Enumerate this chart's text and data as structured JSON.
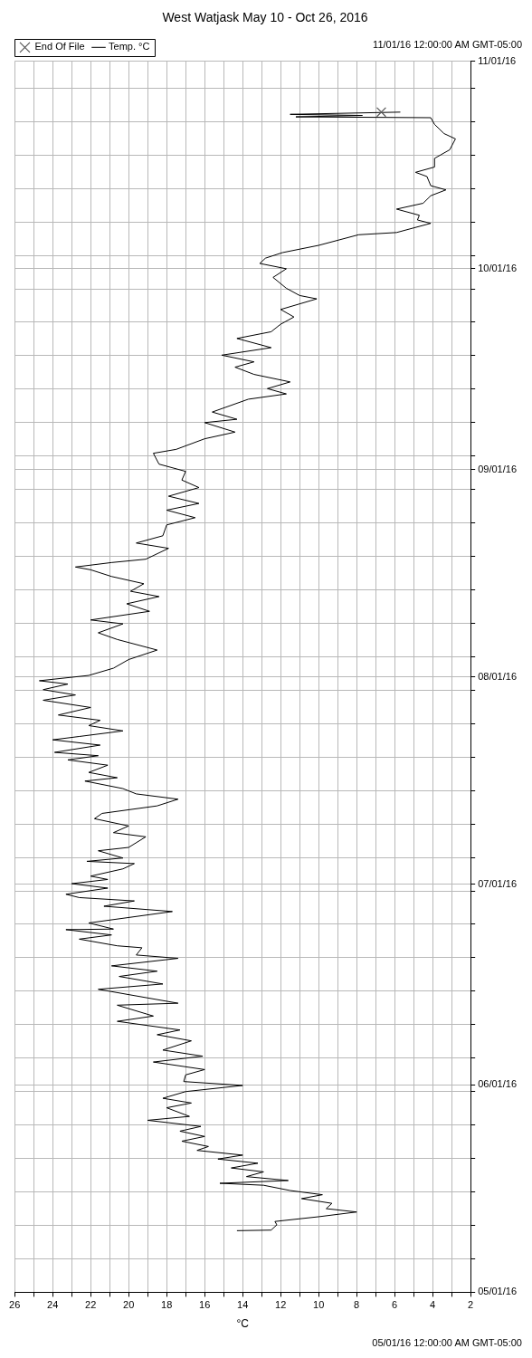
{
  "chart_data": {
    "type": "line",
    "orientation": "horizontal",
    "title": "West Watjask May 10 - Oct 26, 2016",
    "xlabel": "°C",
    "ylim": [
      "2016-05-01",
      "2016-11-01"
    ],
    "yticks": [
      {
        "value": "2016-05-01",
        "label": "05/01/16"
      },
      {
        "value": "2016-05-06",
        "label": null
      },
      {
        "value": "2016-05-11",
        "label": null
      },
      {
        "value": "2016-05-16",
        "label": null
      },
      {
        "value": "2016-05-21",
        "label": null
      },
      {
        "value": "2016-05-26",
        "label": null
      },
      {
        "value": "2016-05-31",
        "label": null
      },
      {
        "value": "2016-06-01",
        "label": "06/01/16"
      },
      {
        "value": "2016-06-05",
        "label": null
      },
      {
        "value": "2016-06-10",
        "label": null
      },
      {
        "value": "2016-06-15",
        "label": null
      },
      {
        "value": "2016-06-20",
        "label": null
      },
      {
        "value": "2016-06-25",
        "label": null
      },
      {
        "value": "2016-06-30",
        "label": null
      },
      {
        "value": "2016-07-01",
        "label": "07/01/16"
      },
      {
        "value": "2016-07-05",
        "label": null
      },
      {
        "value": "2016-07-10",
        "label": null
      },
      {
        "value": "2016-07-15",
        "label": null
      },
      {
        "value": "2016-07-20",
        "label": null
      },
      {
        "value": "2016-07-25",
        "label": null
      },
      {
        "value": "2016-07-30",
        "label": null
      },
      {
        "value": "2016-08-01",
        "label": "08/01/16"
      },
      {
        "value": "2016-08-04",
        "label": null
      },
      {
        "value": "2016-08-09",
        "label": null
      },
      {
        "value": "2016-08-14",
        "label": null
      },
      {
        "value": "2016-08-19",
        "label": null
      },
      {
        "value": "2016-08-24",
        "label": null
      },
      {
        "value": "2016-08-29",
        "label": null
      },
      {
        "value": "2016-09-01",
        "label": "09/01/16"
      },
      {
        "value": "2016-09-03",
        "label": null
      },
      {
        "value": "2016-09-08",
        "label": null
      },
      {
        "value": "2016-09-13",
        "label": null
      },
      {
        "value": "2016-09-18",
        "label": null
      },
      {
        "value": "2016-09-23",
        "label": null
      },
      {
        "value": "2016-09-28",
        "label": null
      },
      {
        "value": "2016-10-01",
        "label": "10/01/16"
      },
      {
        "value": "2016-10-03",
        "label": null
      },
      {
        "value": "2016-10-08",
        "label": null
      },
      {
        "value": "2016-10-13",
        "label": null
      },
      {
        "value": "2016-10-18",
        "label": null
      },
      {
        "value": "2016-10-23",
        "label": null
      },
      {
        "value": "2016-10-28",
        "label": null
      },
      {
        "value": "2016-11-01",
        "label": "11/01/16"
      }
    ],
    "xlim": [
      26,
      2
    ],
    "xticks": [
      2,
      {
        "value": 3,
        "label": null
      },
      4,
      {
        "value": 5,
        "label": null
      },
      6,
      {
        "value": 7,
        "label": null
      },
      8,
      {
        "value": 9,
        "label": null
      },
      10,
      {
        "value": 11,
        "label": null
      },
      12,
      {
        "value": 13,
        "label": null
      },
      14,
      {
        "value": 15,
        "label": null
      },
      16,
      {
        "value": 17,
        "label": null
      },
      18,
      {
        "value": 19,
        "label": null
      },
      20,
      {
        "value": 21,
        "label": null
      },
      22,
      {
        "value": 23,
        "label": null
      },
      24,
      {
        "value": 25,
        "label": null
      },
      26
    ],
    "grid": true,
    "legend": "top left",
    "annotations": [
      "05/01/16 12:00:00 AM GMT-05:00",
      "11/01/16 12:00:00 AM GMT-05:00"
    ],
    "series": [
      {
        "name": "Temp. °C",
        "type": "line",
        "color": "#000000",
        "marker": "none",
        "x": [
          "2016-05-10T05:00",
          "2016-05-10T07:00",
          "2016-05-11T02:00",
          "2016-05-11T14:00",
          "2016-05-12T07:00",
          "2016-05-13T00:00",
          "2016-05-13T12:00",
          "2016-05-14T07:00",
          "2016-05-15T00:00",
          "2016-05-15T14:00",
          "2016-05-16T05:00",
          "2016-05-17T00:00",
          "2016-05-17T07:00",
          "2016-05-17T17:00",
          "2016-05-18T07:00",
          "2016-05-19T00:00",
          "2016-05-19T14:00",
          "2016-05-20T07:00",
          "2016-05-20T22:00",
          "2016-05-21T12:00",
          "2016-05-22T05:00",
          "2016-05-22T19:00",
          "2016-05-23T14:00",
          "2016-05-24T07:00",
          "2016-05-25T02:00",
          "2016-05-25T19:00",
          "2016-05-26T17:00",
          "2016-05-27T07:00",
          "2016-05-28T14:00",
          "2016-05-29T07:00",
          "2016-05-30T00:00",
          "2016-05-31T00:00",
          "2016-05-31T22:00",
          "2016-06-01T12:00",
          "2016-06-02T12:00",
          "2016-06-03T07:00",
          "2016-06-04T10:00",
          "2016-06-05T07:00",
          "2016-06-06T05:00",
          "2016-06-07T14:00",
          "2016-06-08T12:00",
          "2016-06-09T05:00",
          "2016-06-10T12:00",
          "2016-06-11T07:00",
          "2016-06-12T22:00",
          "2016-06-13T05:00",
          "2016-06-14T00:00",
          "2016-06-15T07:00",
          "2016-06-16T02:00",
          "2016-06-17T05:00",
          "2016-06-18T00:00",
          "2016-06-18T19:00",
          "2016-06-19T22:00",
          "2016-06-20T10:00",
          "2016-06-21T12:00",
          "2016-06-21T19:00",
          "2016-06-22T19:00",
          "2016-06-23T10:00",
          "2016-06-24T05:00",
          "2016-06-24T07:00",
          "2016-06-25T05:00",
          "2016-06-26T22:00",
          "2016-06-27T17:00",
          "2016-06-28T12:00",
          "2016-06-29T00:00",
          "2016-06-29T12:00",
          "2016-06-30T10:00",
          "2016-07-01T02:00",
          "2016-07-01T17:00",
          "2016-07-02T05:00",
          "2016-07-03T07:00",
          "2016-07-04T02:00",
          "2016-07-04T10:00",
          "2016-07-04T22:00",
          "2016-07-06T00:00",
          "2016-07-06T12:00",
          "2016-07-08T02:00",
          "2016-07-08T17:00",
          "2016-07-09T17:00",
          "2016-07-10T19:00",
          "2016-07-11T14:00",
          "2016-07-12T17:00",
          "2016-07-13T17:00",
          "2016-07-14T12:00",
          "2016-07-15T07:00",
          "2016-07-16T10:00",
          "2016-07-16T22:00",
          "2016-07-17T17:00",
          "2016-07-18T19:00",
          "2016-07-19T14:00",
          "2016-07-20T05:00",
          "2016-07-20T17:00",
          "2016-07-21T19:00",
          "2016-07-22T14:00",
          "2016-07-23T02:00",
          "2016-07-23T22:00",
          "2016-07-24T17:00",
          "2016-07-25T12:00",
          "2016-07-26T07:00",
          "2016-07-27T10:00",
          "2016-07-28T12:00",
          "2016-07-29T07:00",
          "2016-07-30T02:00",
          "2016-07-30T22:00",
          "2016-07-31T10:00",
          "2016-08-01T05:00",
          "2016-08-02T07:00",
          "2016-08-03T14:00",
          "2016-08-05T00:00",
          "2016-08-06T14:00",
          "2016-08-07T14:00",
          "2016-08-08T22:00",
          "2016-08-09T12:00",
          "2016-08-10T19:00",
          "2016-08-11T22:00",
          "2016-08-13T00:00",
          "2016-08-13T19:00",
          "2016-08-14T22:00",
          "2016-08-16T00:00",
          "2016-08-17T00:00",
          "2016-08-17T10:00",
          "2016-08-18T02:00",
          "2016-08-18T14:00",
          "2016-08-20T05:00",
          "2016-08-21T00:00",
          "2016-08-22T02:00",
          "2016-08-23T17:00",
          "2016-08-24T19:00",
          "2016-08-25T22:00",
          "2016-08-26T22:00",
          "2016-08-28T00:00",
          "2016-08-29T07:00",
          "2016-08-30T10:00",
          "2016-08-31T17:00",
          "2016-09-01T19:00",
          "2016-09-03T10:00",
          "2016-09-04T00:00",
          "2016-09-05T14:00",
          "2016-09-06T14:00",
          "2016-09-08T00:00",
          "2016-09-08T12:00",
          "2016-09-09T14:00",
          "2016-09-11T12:00",
          "2016-09-12T07:00",
          "2016-09-13T02:00",
          "2016-09-14T02:00",
          "2016-09-15T05:00",
          "2016-09-16T07:00",
          "2016-09-17T02:00",
          "2016-09-18T02:00",
          "2016-09-19T05:00",
          "2016-09-20T14:00",
          "2016-09-21T14:00",
          "2016-09-22T17:00",
          "2016-09-23T19:00",
          "2016-09-24T22:00",
          "2016-09-26T12:00",
          "2016-09-27T00:00",
          "2016-09-28T02:00",
          "2016-09-29T17:00",
          "2016-10-01T00:00",
          "2016-10-01T19:00",
          "2016-10-02T14:00",
          "2016-10-03T10:00",
          "2016-10-04T12:00",
          "2016-10-06T02:00",
          "2016-10-06T10:00",
          "2016-10-07T19:00",
          "2016-10-08T07:00",
          "2016-10-09T00:00",
          "2016-10-09T22:00",
          "2016-10-10T19:00",
          "2016-10-11T22:00",
          "2016-10-12T19:00",
          "2016-10-13T10:00",
          "2016-10-14T19:00",
          "2016-10-15T10:00",
          "2016-10-16T05:00",
          "2016-10-17T12:00",
          "2016-10-18T19:00",
          "2016-10-20T10:00",
          "2016-10-21T05:00",
          "2016-10-22T14:00",
          "2016-10-23T14:00",
          "2016-10-23T17:00",
          "2016-10-23T22:00",
          "2016-10-24T02:00",
          "2016-10-24T10:00"
        ],
        "values": [
          14.3,
          12.5,
          12.2,
          12.3,
          10.0,
          8.0,
          9.6,
          9.3,
          10.9,
          9.8,
          11.5,
          12.9,
          15.2,
          11.6,
          13.8,
          12.9,
          14.6,
          13.2,
          15.3,
          14.0,
          16.4,
          15.8,
          17.2,
          16.0,
          17.3,
          16.2,
          19.0,
          16.8,
          18.0,
          16.7,
          18.2,
          17.0,
          14.0,
          17.1,
          17.0,
          16.0,
          18.7,
          16.1,
          18.2,
          16.7,
          18.5,
          17.3,
          20.6,
          18.7,
          20.6,
          17.4,
          19.0,
          21.6,
          18.2,
          20.5,
          18.5,
          20.9,
          17.4,
          19.6,
          19.3,
          20.6,
          22.6,
          20.9,
          23.3,
          20.8,
          22.1,
          17.7,
          21.3,
          19.7,
          22.6,
          23.3,
          21.1,
          23.0,
          21.1,
          22.0,
          20.3,
          19.7,
          22.2,
          20.3,
          21.6,
          20.0,
          19.1,
          20.8,
          20.0,
          21.8,
          21.4,
          18.5,
          17.4,
          19.6,
          20.3,
          22.3,
          20.6,
          22.1,
          21.1,
          23.2,
          21.6,
          23.9,
          21.5,
          24.0,
          22.6,
          20.3,
          22.1,
          21.5,
          23.7,
          22.0,
          24.5,
          22.8,
          24.5,
          23.2,
          24.7,
          22.1,
          20.8,
          20.0,
          18.5,
          20.6,
          21.6,
          20.3,
          22.0,
          18.9,
          20.1,
          18.4,
          19.9,
          19.2,
          20.9,
          22.0,
          22.8,
          20.9,
          19.1,
          17.9,
          19.6,
          18.2,
          18.0,
          16.5,
          18.0,
          16.3,
          17.9,
          16.3,
          17.2,
          17.0,
          18.4,
          18.7,
          17.5,
          16.0,
          14.4,
          16.0,
          14.3,
          15.6,
          13.7,
          11.7,
          12.7,
          11.5,
          13.4,
          14.4,
          13.4,
          15.1,
          12.5,
          14.3,
          12.5,
          12.0,
          11.3,
          12.0,
          10.1,
          11.0,
          11.7,
          12.4,
          11.7,
          13.1,
          12.8,
          11.9,
          10.0,
          7.9,
          5.9,
          4.1,
          4.8,
          4.7,
          5.9,
          4.5,
          4.1,
          3.3,
          4.1,
          4.3,
          4.9,
          3.9,
          3.9,
          3.1,
          2.8,
          3.4,
          3.9,
          4.1,
          11.2,
          7.7,
          11.5,
          5.7
        ]
      },
      {
        "name": "End Of File",
        "type": "scatter",
        "color": "#555555",
        "marker": "cross",
        "x": [
          "2016-10-24T10:00"
        ],
        "values": [
          6.7
        ]
      }
    ]
  }
}
